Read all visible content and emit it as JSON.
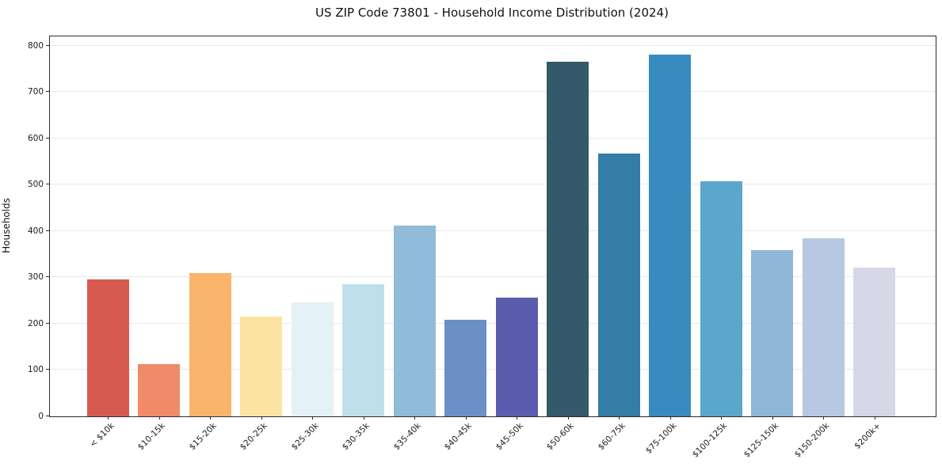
{
  "chart_data": {
    "type": "bar",
    "title": "US ZIP Code 73801 - Household Income Distribution (2024)",
    "xlabel": "",
    "ylabel": "Households",
    "ylim": [
      0,
      820
    ],
    "yticks": [
      0,
      100,
      200,
      300,
      400,
      500,
      600,
      700,
      800
    ],
    "grid": "horizontal",
    "legend_position": "none",
    "categories": [
      "< $10k",
      "$10-15k",
      "$15-20k",
      "$20-25k",
      "$25-30k",
      "$30-35k",
      "$35-40k",
      "$40-45k",
      "$45-50k",
      "$50-60k",
      "$60-75k",
      "$75-100k",
      "$100-125k",
      "$125-150k",
      "$150-200k",
      "$200k+"
    ],
    "values": [
      295,
      113,
      309,
      216,
      246,
      285,
      411,
      209,
      256,
      765,
      568,
      780,
      508,
      358,
      384,
      322
    ],
    "bar_colors": [
      "#d65a50",
      "#f18a68",
      "#fbb46c",
      "#fce3a2",
      "#e4f1f6",
      "#bee0eb",
      "#90bcda",
      "#6b90c7",
      "#5c5cae",
      "#34596b",
      "#337da6",
      "#378bc1",
      "#5ba7cb",
      "#8fb7d8",
      "#b7c8e2",
      "#d6d8e8"
    ]
  },
  "colors": {
    "background": "#ffffff",
    "spine": "#2b2b2b",
    "gridline": "#e8e8e8",
    "tick_text": "#1a1a1a",
    "title_text": "#111111"
  }
}
